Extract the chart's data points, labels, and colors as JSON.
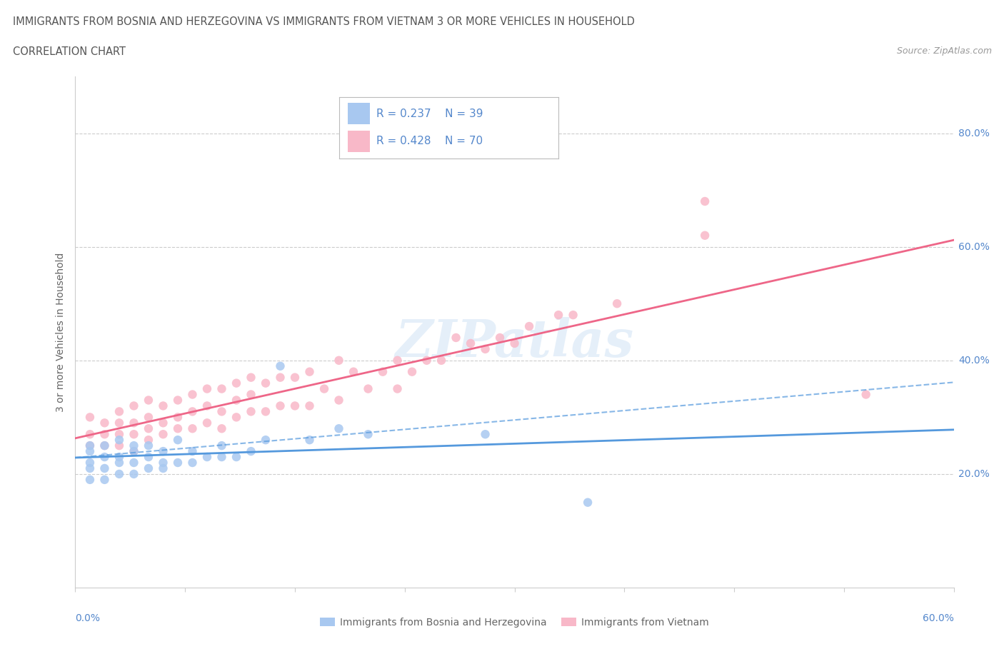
{
  "title_line1": "IMMIGRANTS FROM BOSNIA AND HERZEGOVINA VS IMMIGRANTS FROM VIETNAM 3 OR MORE VEHICLES IN HOUSEHOLD",
  "title_line2": "CORRELATION CHART",
  "source": "Source: ZipAtlas.com",
  "ylabel": "3 or more Vehicles in Household",
  "ytick_values": [
    0.2,
    0.4,
    0.6,
    0.8
  ],
  "legend_bosnia_r": "R = 0.237",
  "legend_bosnia_n": "N = 39",
  "legend_vietnam_r": "R = 0.428",
  "legend_vietnam_n": "N = 70",
  "xlim": [
    0.0,
    0.6
  ],
  "ylim": [
    0.0,
    0.9
  ],
  "color_bosnia": "#a8c8f0",
  "color_vietnam": "#f8b8c8",
  "color_bosnia_line": "#5599dd",
  "color_vietnam_line": "#ee6688",
  "color_text_blue": "#5588cc",
  "watermark": "ZIPatlas",
  "bosnia_scatter_x": [
    0.01,
    0.01,
    0.01,
    0.01,
    0.01,
    0.02,
    0.02,
    0.02,
    0.02,
    0.03,
    0.03,
    0.03,
    0.03,
    0.04,
    0.04,
    0.04,
    0.04,
    0.05,
    0.05,
    0.05,
    0.06,
    0.06,
    0.06,
    0.07,
    0.07,
    0.08,
    0.08,
    0.09,
    0.1,
    0.1,
    0.11,
    0.12,
    0.13,
    0.14,
    0.16,
    0.18,
    0.2,
    0.28,
    0.35
  ],
  "bosnia_scatter_y": [
    0.19,
    0.21,
    0.22,
    0.24,
    0.25,
    0.19,
    0.21,
    0.23,
    0.25,
    0.2,
    0.22,
    0.23,
    0.26,
    0.2,
    0.22,
    0.24,
    0.25,
    0.21,
    0.23,
    0.25,
    0.21,
    0.22,
    0.24,
    0.22,
    0.26,
    0.22,
    0.24,
    0.23,
    0.23,
    0.25,
    0.23,
    0.24,
    0.26,
    0.39,
    0.26,
    0.28,
    0.27,
    0.27,
    0.15
  ],
  "vietnam_scatter_x": [
    0.01,
    0.01,
    0.01,
    0.02,
    0.02,
    0.02,
    0.03,
    0.03,
    0.03,
    0.03,
    0.04,
    0.04,
    0.04,
    0.04,
    0.05,
    0.05,
    0.05,
    0.05,
    0.06,
    0.06,
    0.06,
    0.07,
    0.07,
    0.07,
    0.08,
    0.08,
    0.08,
    0.09,
    0.09,
    0.09,
    0.1,
    0.1,
    0.1,
    0.11,
    0.11,
    0.11,
    0.12,
    0.12,
    0.12,
    0.13,
    0.13,
    0.14,
    0.14,
    0.15,
    0.15,
    0.16,
    0.16,
    0.17,
    0.18,
    0.18,
    0.19,
    0.2,
    0.21,
    0.22,
    0.22,
    0.23,
    0.24,
    0.25,
    0.26,
    0.27,
    0.28,
    0.29,
    0.3,
    0.31,
    0.33,
    0.34,
    0.37,
    0.43,
    0.43,
    0.54
  ],
  "vietnam_scatter_y": [
    0.25,
    0.27,
    0.3,
    0.25,
    0.27,
    0.29,
    0.25,
    0.27,
    0.29,
    0.31,
    0.24,
    0.27,
    0.29,
    0.32,
    0.26,
    0.28,
    0.3,
    0.33,
    0.27,
    0.29,
    0.32,
    0.28,
    0.3,
    0.33,
    0.28,
    0.31,
    0.34,
    0.29,
    0.32,
    0.35,
    0.28,
    0.31,
    0.35,
    0.3,
    0.33,
    0.36,
    0.31,
    0.34,
    0.37,
    0.31,
    0.36,
    0.32,
    0.37,
    0.32,
    0.37,
    0.32,
    0.38,
    0.35,
    0.33,
    0.4,
    0.38,
    0.35,
    0.38,
    0.35,
    0.4,
    0.38,
    0.4,
    0.4,
    0.44,
    0.43,
    0.42,
    0.44,
    0.43,
    0.46,
    0.48,
    0.48,
    0.5,
    0.62,
    0.68,
    0.34
  ]
}
